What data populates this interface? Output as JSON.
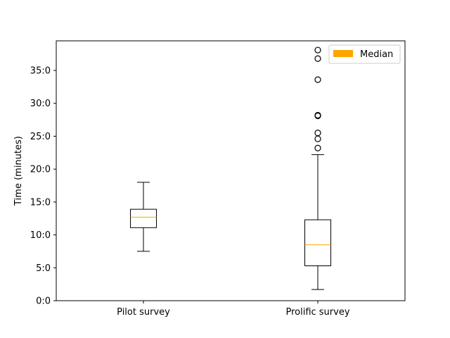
{
  "chart_data": {
    "type": "box",
    "ylabel": "Time (minutes)",
    "xlabel": "",
    "ylim": [
      0,
      39.5
    ],
    "yticks": [
      {
        "value": 0,
        "label": "0:0"
      },
      {
        "value": 5,
        "label": "5:0"
      },
      {
        "value": 10,
        "label": "10:0"
      },
      {
        "value": 15,
        "label": "15:0"
      },
      {
        "value": 20,
        "label": "20:0"
      },
      {
        "value": 25,
        "label": "25:0"
      },
      {
        "value": 30,
        "label": "30:0"
      },
      {
        "value": 35,
        "label": "35:0"
      }
    ],
    "categories": [
      "Pilot survey",
      "Prolific survey"
    ],
    "boxes": [
      {
        "category": "Pilot survey",
        "whisker_low": 7.5,
        "q1": 11.1,
        "median": 12.7,
        "q3": 13.9,
        "whisker_high": 18.0,
        "outliers": []
      },
      {
        "category": "Prolific survey",
        "whisker_low": 1.7,
        "q1": 5.3,
        "median": 8.5,
        "q3": 12.3,
        "whisker_high": 22.2,
        "outliers": [
          23.2,
          24.6,
          25.5,
          28.1,
          28.2,
          33.6,
          36.8,
          38.1
        ]
      }
    ],
    "legend": {
      "position": "top-right",
      "entries": [
        {
          "label": "Median",
          "color": "#ffa500"
        }
      ]
    },
    "colors": {
      "median": "#ffa500",
      "box": "#000000"
    },
    "grid": false
  }
}
